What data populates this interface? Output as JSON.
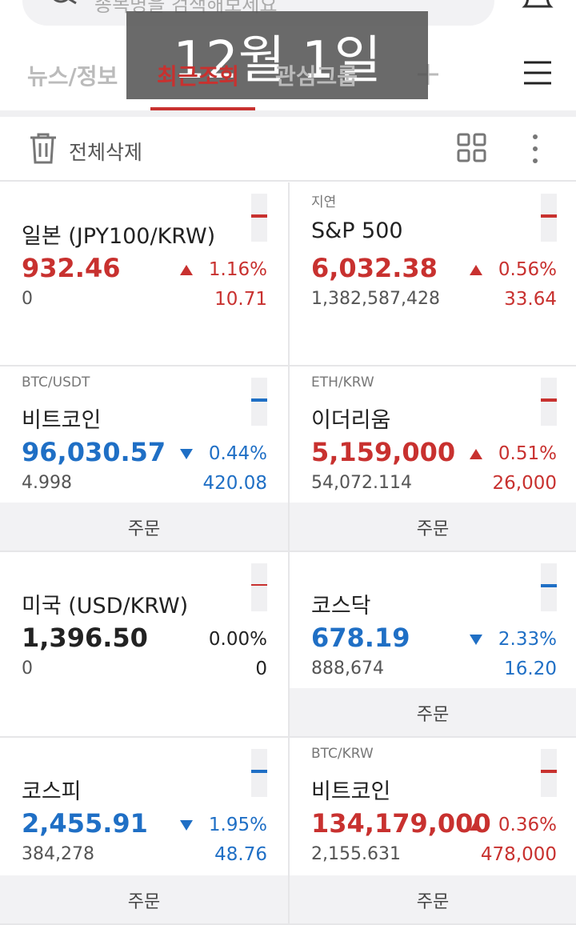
{
  "header": {
    "search_placeholder": "종목명을 검색해보세요",
    "date_overlay": "12월 1일",
    "tabs": [
      "뉴스/정보",
      "최근조회",
      "관심그룹"
    ],
    "active_tab": 1
  },
  "toolbar": {
    "delete_all": "전체삭제"
  },
  "cards": [
    {
      "name": "일본 (JPY100/KRW)",
      "price": "932.46",
      "direction": "up",
      "change_pct": "1.16%",
      "volume": "0",
      "change": "10.71"
    },
    {
      "tag": "지연",
      "name": "S&P 500",
      "price": "6,032.38",
      "direction": "up",
      "change_pct": "0.56%",
      "volume": "1,382,587,428",
      "change": "33.64"
    },
    {
      "tag": "BTC/USDT",
      "name": "비트코인",
      "price": "96,030.57",
      "direction": "down",
      "change_pct": "0.44%",
      "volume": "4.998",
      "change": "420.08",
      "order": "주문"
    },
    {
      "tag": "ETH/KRW",
      "name": "이더리움",
      "price": "5,159,000",
      "direction": "up",
      "change_pct": "0.51%",
      "volume": "54,072.114",
      "change": "26,000",
      "order": "주문"
    },
    {
      "name": "미국 (USD/KRW)",
      "price": "1,396.50",
      "direction": "flat",
      "change_pct": "0.00%",
      "volume": "0",
      "change": "0"
    },
    {
      "name": "코스닥",
      "price": "678.19",
      "direction": "down",
      "change_pct": "2.33%",
      "volume": "888,674",
      "change": "16.20",
      "order": "주문"
    },
    {
      "name": "코스피",
      "price": "2,455.91",
      "direction": "down",
      "change_pct": "1.95%",
      "volume": "384,278",
      "change": "48.76",
      "order": "주문"
    },
    {
      "tag": "BTC/KRW",
      "name": "비트코인",
      "price": "134,179,000",
      "direction": "up",
      "change_pct": "0.36%",
      "volume": "2,155.631",
      "change": "478,000",
      "order": "주문"
    }
  ]
}
